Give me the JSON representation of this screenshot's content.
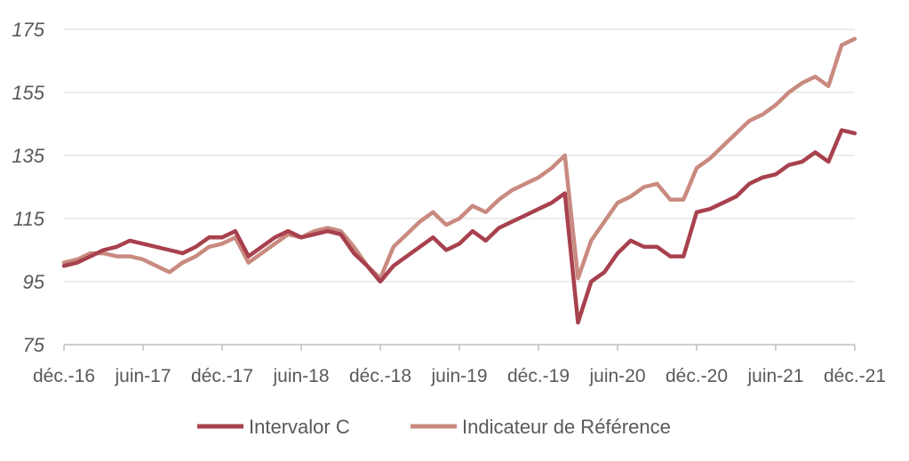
{
  "chart_data": {
    "type": "line",
    "title": "",
    "xlabel": "",
    "ylabel": "",
    "ylim": [
      75,
      175
    ],
    "yticks": [
      75,
      95,
      115,
      135,
      155,
      175
    ],
    "x_tick_labels": [
      "déc.-16",
      "juin-17",
      "déc.-17",
      "juin-18",
      "déc.-18",
      "juin-19",
      "déc.-19",
      "juin-20",
      "déc.-20",
      "juin-21",
      "déc.-21"
    ],
    "grid": true,
    "legend_position": "bottom",
    "series": [
      {
        "name": "Intervalor C",
        "color": "#a8414e",
        "x": [
          "2016-12",
          "2017-01",
          "2017-02",
          "2017-03",
          "2017-04",
          "2017-05",
          "2017-06",
          "2017-07",
          "2017-08",
          "2017-09",
          "2017-10",
          "2017-11",
          "2017-12",
          "2018-01",
          "2018-02",
          "2018-03",
          "2018-04",
          "2018-05",
          "2018-06",
          "2018-07",
          "2018-08",
          "2018-09",
          "2018-10",
          "2018-11",
          "2018-12",
          "2019-01",
          "2019-02",
          "2019-03",
          "2019-04",
          "2019-05",
          "2019-06",
          "2019-07",
          "2019-08",
          "2019-09",
          "2019-10",
          "2019-11",
          "2019-12",
          "2020-01",
          "2020-02",
          "2020-03",
          "2020-04",
          "2020-05",
          "2020-06",
          "2020-07",
          "2020-08",
          "2020-09",
          "2020-10",
          "2020-11",
          "2020-12",
          "2021-01",
          "2021-02",
          "2021-03",
          "2021-04",
          "2021-05",
          "2021-06",
          "2021-07",
          "2021-08",
          "2021-09",
          "2021-10",
          "2021-11",
          "2021-12"
        ],
        "values": [
          100,
          101,
          103,
          105,
          106,
          108,
          107,
          106,
          105,
          104,
          106,
          109,
          109,
          111,
          103,
          106,
          109,
          111,
          109,
          110,
          111,
          110,
          104,
          100,
          95,
          100,
          103,
          106,
          109,
          105,
          107,
          111,
          108,
          112,
          114,
          116,
          118,
          120,
          123,
          82,
          95,
          98,
          104,
          108,
          106,
          106,
          103,
          103,
          117,
          118,
          120,
          122,
          126,
          128,
          129,
          132,
          133,
          136,
          133,
          143,
          142
        ]
      },
      {
        "name": "Indicateur de Référence",
        "color": "#c98a80",
        "x": [
          "2016-12",
          "2017-01",
          "2017-02",
          "2017-03",
          "2017-04",
          "2017-05",
          "2017-06",
          "2017-07",
          "2017-08",
          "2017-09",
          "2017-10",
          "2017-11",
          "2017-12",
          "2018-01",
          "2018-02",
          "2018-03",
          "2018-04",
          "2018-05",
          "2018-06",
          "2018-07",
          "2018-08",
          "2018-09",
          "2018-10",
          "2018-11",
          "2018-12",
          "2019-01",
          "2019-02",
          "2019-03",
          "2019-04",
          "2019-05",
          "2019-06",
          "2019-07",
          "2019-08",
          "2019-09",
          "2019-10",
          "2019-11",
          "2019-12",
          "2020-01",
          "2020-02",
          "2020-03",
          "2020-04",
          "2020-05",
          "2020-06",
          "2020-07",
          "2020-08",
          "2020-09",
          "2020-10",
          "2020-11",
          "2020-12",
          "2021-01",
          "2021-02",
          "2021-03",
          "2021-04",
          "2021-05",
          "2021-06",
          "2021-07",
          "2021-08",
          "2021-09",
          "2021-10",
          "2021-11",
          "2021-12"
        ],
        "values": [
          101,
          102,
          104,
          104,
          103,
          103,
          102,
          100,
          98,
          101,
          103,
          106,
          107,
          109,
          101,
          104,
          107,
          110,
          109,
          111,
          112,
          111,
          106,
          100,
          96,
          106,
          110,
          114,
          117,
          113,
          115,
          119,
          117,
          121,
          124,
          126,
          128,
          131,
          135,
          96,
          108,
          114,
          120,
          122,
          125,
          126,
          121,
          121,
          131,
          134,
          138,
          142,
          146,
          148,
          151,
          155,
          158,
          160,
          157,
          170,
          172
        ]
      }
    ]
  }
}
